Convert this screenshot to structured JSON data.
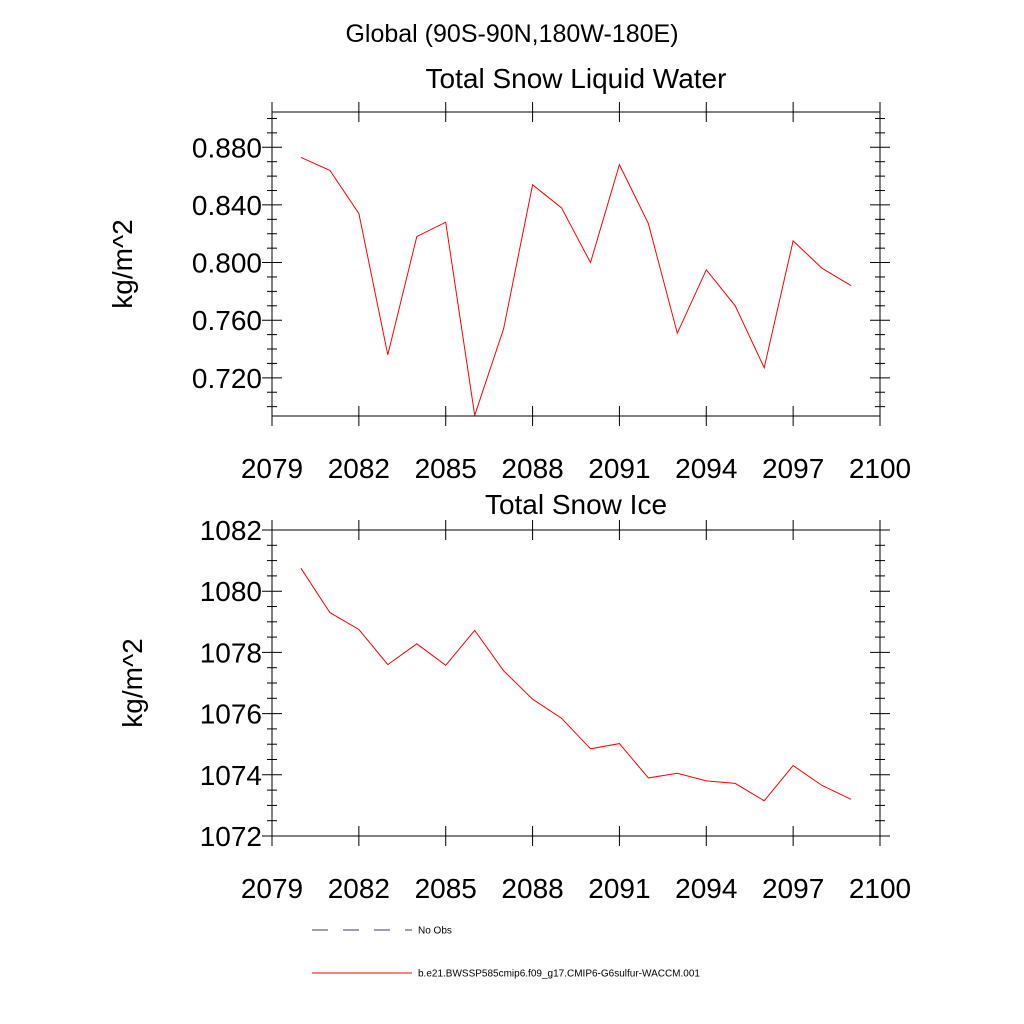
{
  "figure": {
    "title": "Global (90S-90N,180W-180E)"
  },
  "chart_data": [
    {
      "type": "line",
      "title": "Total Snow Liquid Water",
      "xlabel": "",
      "ylabel": "kg/m^2",
      "xlim": [
        2079,
        2100
      ],
      "ylim": [
        0.6935,
        0.9045
      ],
      "xticks": [
        2079,
        2082,
        2085,
        2088,
        2091,
        2094,
        2097,
        2100
      ],
      "xtick_labels": [
        "2079",
        "2082",
        "2085",
        "2088",
        "2091",
        "2094",
        "2097",
        "2100"
      ],
      "yticks": [
        0.72,
        0.76,
        0.8,
        0.84,
        0.88
      ],
      "ytick_labels": [
        "0.720",
        "0.760",
        "0.800",
        "0.840",
        "0.880"
      ],
      "grid": false,
      "series": [
        {
          "name": "b.e21.BWSSP585cmip6.f09_g17.CMIP6-G6sulfur-WACCM.001",
          "color": "#ff0000",
          "x": [
            2080,
            2081,
            2082,
            2083,
            2084,
            2085,
            2086,
            2087,
            2088,
            2089,
            2090,
            2091,
            2092,
            2093,
            2094,
            2095,
            2096,
            2097,
            2098,
            2099
          ],
          "values": [
            0.873,
            0.864,
            0.834,
            0.736,
            0.818,
            0.828,
            0.694,
            0.754,
            0.854,
            0.838,
            0.8,
            0.868,
            0.827,
            0.751,
            0.795,
            0.77,
            0.727,
            0.815,
            0.796,
            0.784
          ]
        }
      ]
    },
    {
      "type": "line",
      "title": "Total Snow Ice",
      "xlabel": "",
      "ylabel": "kg/m^2",
      "xlim": [
        2079,
        2100
      ],
      "ylim": [
        1072,
        1082
      ],
      "xticks": [
        2079,
        2082,
        2085,
        2088,
        2091,
        2094,
        2097,
        2100
      ],
      "xtick_labels": [
        "2079",
        "2082",
        "2085",
        "2088",
        "2091",
        "2094",
        "2097",
        "2100"
      ],
      "yticks": [
        1072,
        1074,
        1076,
        1078,
        1080,
        1082
      ],
      "ytick_labels": [
        "1072",
        "1074",
        "1076",
        "1078",
        "1080",
        "1082"
      ],
      "grid": false,
      "series": [
        {
          "name": "b.e21.BWSSP585cmip6.f09_g17.CMIP6-G6sulfur-WACCM.001",
          "color": "#ff0000",
          "x": [
            2080,
            2081,
            2082,
            2083,
            2084,
            2085,
            2086,
            2087,
            2088,
            2089,
            2090,
            2091,
            2092,
            2093,
            2094,
            2095,
            2096,
            2097,
            2098,
            2099
          ],
          "values": [
            1080.75,
            1079.3,
            1078.75,
            1077.6,
            1078.28,
            1077.58,
            1078.72,
            1077.4,
            1076.47,
            1075.85,
            1074.85,
            1075.02,
            1073.9,
            1074.05,
            1073.8,
            1073.72,
            1073.15,
            1074.3,
            1073.65,
            1073.2
          ]
        }
      ]
    }
  ],
  "legend": {
    "placement": "bottom",
    "entries": [
      {
        "label": "No Obs",
        "color": "#3a3a6e",
        "style": "dashed"
      },
      {
        "label": "b.e21.BWSSP585cmip6.f09_g17.CMIP6-G6sulfur-WACCM.001",
        "color": "#ff0000",
        "style": "solid"
      }
    ]
  }
}
